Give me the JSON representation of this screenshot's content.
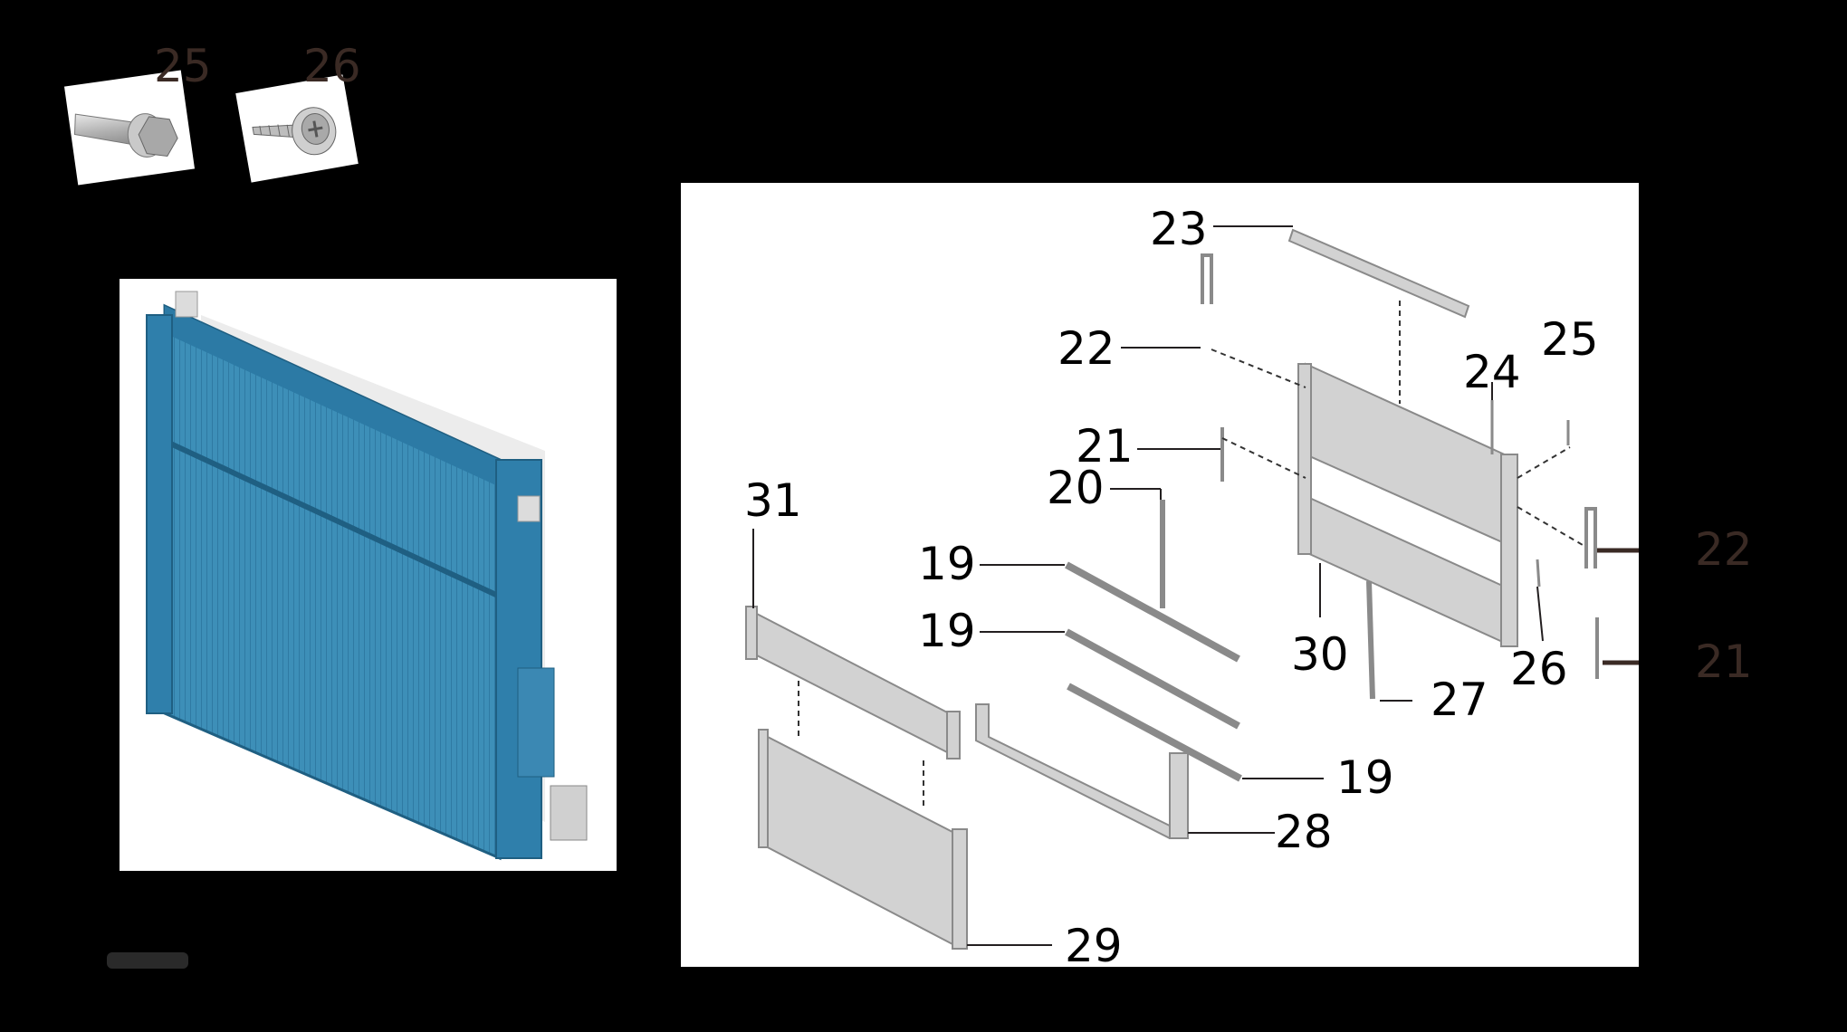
{
  "hardware": [
    {
      "num": "25",
      "part": "hex-flange-bolt"
    },
    {
      "num": "26",
      "part": "self-tapping-washer-screw"
    }
  ],
  "callouts": {
    "c23": "23",
    "c22a": "22",
    "c25b": "25",
    "c24": "24",
    "c21a": "21",
    "c20": "20",
    "c31": "31",
    "c19a": "19",
    "c19b": "19",
    "c22b": "22",
    "c30": "30",
    "c21b": "21",
    "c26b": "26",
    "c27": "27",
    "c19c": "19",
    "c28": "28",
    "c29": "29"
  },
  "colors": {
    "background": "#000000",
    "radiator_blue": "#3d8fb8",
    "part_gray": "#d2d2d2",
    "hardware_label": "#3a2a24",
    "panel_label": "#231f20"
  }
}
